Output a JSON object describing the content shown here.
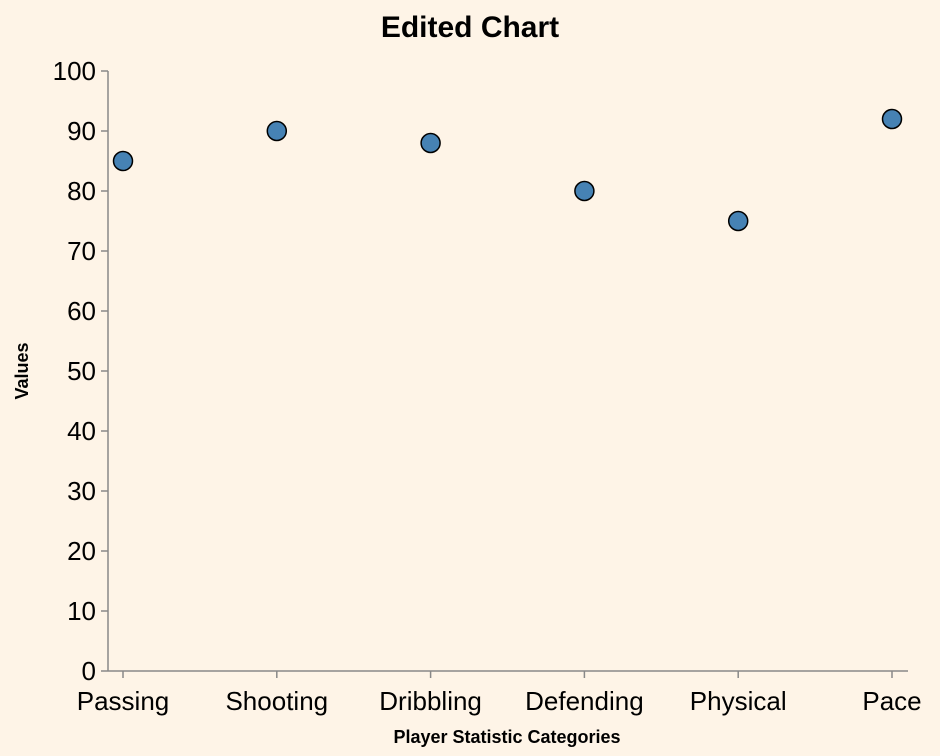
{
  "chart_data": {
    "type": "scatter",
    "title": "Edited Chart",
    "xlabel": "Player Statistic Categories",
    "ylabel": "Values",
    "categories": [
      "Passing",
      "Shooting",
      "Dribbling",
      "Defending",
      "Physical",
      "Pace"
    ],
    "values": [
      85,
      90,
      88,
      80,
      75,
      92
    ],
    "ylim": [
      0,
      100
    ],
    "yticks": [
      0,
      10,
      20,
      30,
      40,
      50,
      60,
      70,
      80,
      90,
      100
    ],
    "grid": false,
    "point_color": "#4682b4",
    "background": "#fef4e7"
  }
}
